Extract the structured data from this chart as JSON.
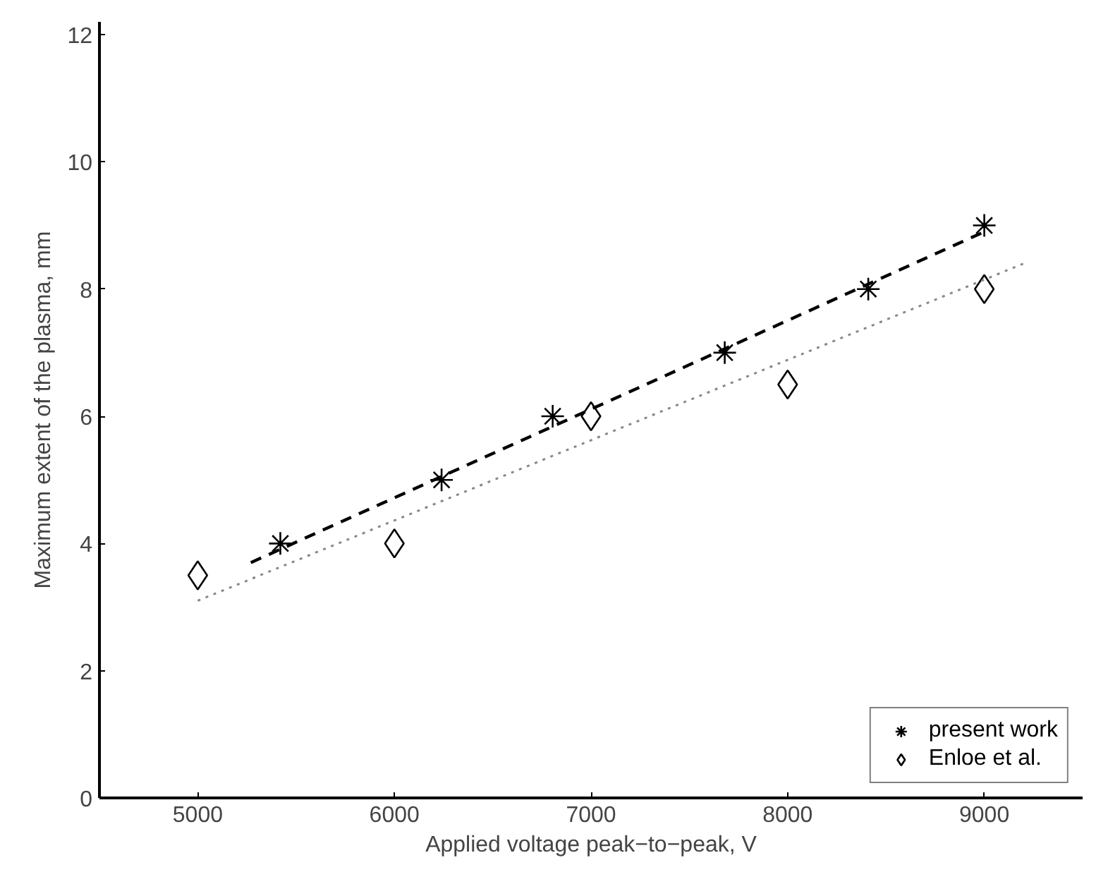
{
  "chart_data": {
    "type": "scatter",
    "xlabel": "Applied voltage peak−to−peak, V",
    "ylabel": "Maximum extent of the plasma, mm",
    "xlim": [
      4500,
      9500
    ],
    "ylim": [
      0,
      12.2
    ],
    "xticks": [
      5000,
      6000,
      7000,
      8000,
      9000
    ],
    "yticks": [
      0,
      2,
      4,
      6,
      8,
      10,
      12
    ],
    "grid": false,
    "legend": "bottom right",
    "series": [
      {
        "name": "present work",
        "marker": "cross",
        "color": "#000000",
        "x": [
          5420,
          6240,
          6805,
          7680,
          8410,
          9000
        ],
        "values": [
          4,
          5,
          6,
          7,
          8,
          9
        ]
      },
      {
        "name": "Enloe et al.",
        "marker": "diamond",
        "color": "#000000",
        "x": [
          5000,
          6000,
          7000,
          8000,
          9000
        ],
        "values": [
          3.5,
          4,
          6,
          6.5,
          8
        ]
      },
      {
        "type": "line",
        "line_style": "dashed",
        "color": "#000000",
        "x": [
          5270,
          9000
        ],
        "values": [
          3.7,
          8.9
        ]
      },
      {
        "type": "line",
        "line_style": "dotted",
        "color": "#888888",
        "x": [
          5000,
          9200
        ],
        "values": [
          3.1,
          8.4
        ]
      }
    ]
  }
}
